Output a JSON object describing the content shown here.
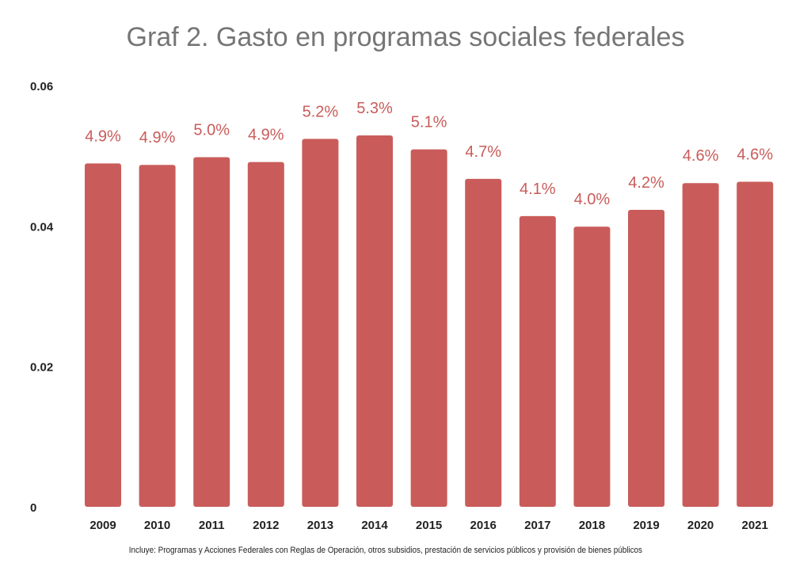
{
  "chart_data": {
    "type": "bar",
    "title": "Graf 2. Gasto en programas sociales federales",
    "xlabel": "",
    "ylabel": "",
    "ylim": [
      0,
      0.06
    ],
    "yticks": [
      "0",
      "0.02",
      "0.04",
      "0.06"
    ],
    "ytick_values": [
      0,
      0.02,
      0.04,
      0.06
    ],
    "grid": false,
    "categories": [
      "2009",
      "2010",
      "2011",
      "2012",
      "2013",
      "2014",
      "2015",
      "2016",
      "2017",
      "2018",
      "2019",
      "2020",
      "2021"
    ],
    "values": [
      0.0489,
      0.0487,
      0.0498,
      0.0491,
      0.0524,
      0.0529,
      0.0509,
      0.0467,
      0.0414,
      0.0399,
      0.0423,
      0.0461,
      0.0463
    ],
    "data_labels": [
      "4.9%",
      "4.9%",
      "5.0%",
      "4.9%",
      "5.2%",
      "5.3%",
      "5.1%",
      "4.7%",
      "4.1%",
      "4.0%",
      "4.2%",
      "4.6%",
      "4.6%"
    ],
    "bar_color": "#c95c5a",
    "label_color": "#c95c5a",
    "note": "Incluye:  Programas y Acciones Federales con Reglas de Operación, otros subsidios, prestación de servicios públicos y provisión de bienes públicos"
  }
}
